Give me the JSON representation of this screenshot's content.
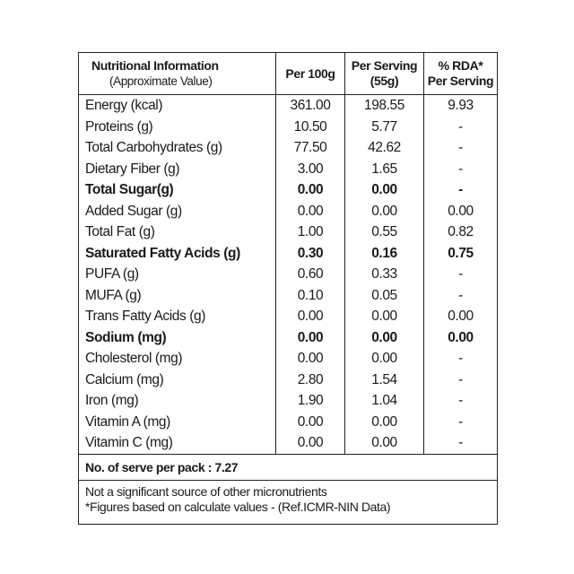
{
  "header": {
    "title": "Nutritional Information",
    "subtitle": "(Approximate Value)",
    "columns": [
      [
        "Per 100g"
      ],
      [
        "Per Serving",
        "(55g)"
      ],
      [
        "% RDA*",
        "Per Serving"
      ]
    ]
  },
  "table": {
    "rows": [
      {
        "cells": [
          "Energy (kcal)",
          "361.00",
          "198.55",
          "9.93"
        ]
      },
      {
        "cells": [
          "Proteins (g)",
          "10.50",
          "5.77",
          "-"
        ]
      },
      {
        "cells": [
          "Total Carbohydrates (g)",
          "77.50",
          "42.62",
          "-"
        ]
      },
      {
        "cells": [
          "Dietary Fiber (g)",
          "3.00",
          "1.65",
          "-"
        ]
      },
      {
        "cells": [
          "Total Sugar(g)",
          "0.00",
          "0.00",
          "-"
        ],
        "bold": true
      },
      {
        "cells": [
          "Added Sugar (g)",
          "0.00",
          "0.00",
          "0.00"
        ]
      },
      {
        "cells": [
          "Total Fat (g)",
          "1.00",
          "0.55",
          "0.82"
        ]
      },
      {
        "cells": [
          "Saturated Fatty Acids (g)",
          "0.30",
          "0.16",
          "0.75"
        ],
        "bold": true
      },
      {
        "cells": [
          "PUFA (g)",
          "0.60",
          "0.33",
          "-"
        ]
      },
      {
        "cells": [
          "MUFA (g)",
          "0.10",
          "0.05",
          "-"
        ]
      },
      {
        "cells": [
          "Trans Fatty Acids (g)",
          "0.00",
          "0.00",
          "0.00"
        ]
      },
      {
        "cells": [
          "Sodium (mg)",
          "0.00",
          "0.00",
          "0.00"
        ],
        "bold": true
      },
      {
        "cells": [
          "Cholesterol (mg)",
          "0.00",
          "0.00",
          "-"
        ]
      },
      {
        "cells": [
          "Calcium (mg)",
          "2.80",
          "1.54",
          "-"
        ]
      },
      {
        "cells": [
          "Iron (mg)",
          "1.90",
          "1.04",
          "-"
        ]
      },
      {
        "cells": [
          "Vitamin A (mg)",
          "0.00",
          "0.00",
          "-"
        ]
      },
      {
        "cells": [
          "Vitamin C (mg)",
          "0.00",
          "0.00",
          "-"
        ]
      }
    ]
  },
  "footer": {
    "serves": "No. of serve per pack : 7.27",
    "notes": [
      "Not a significant source of other micronutrients",
      "*Figures based on calculate values - (Ref.ICMR-NIN Data)"
    ]
  }
}
